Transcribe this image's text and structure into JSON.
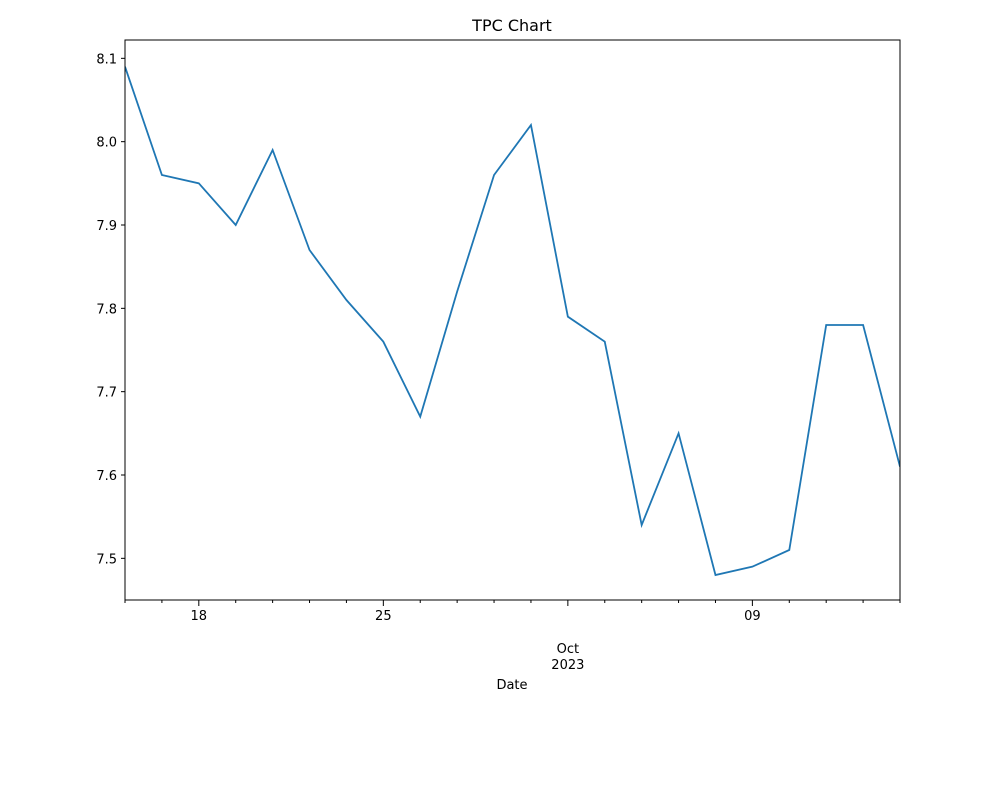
{
  "chart_data": {
    "type": "line",
    "title": "TPC Chart",
    "xlabel": "Date",
    "x": [
      "2023-09-14",
      "2023-09-15",
      "2023-09-18",
      "2023-09-19",
      "2023-09-20",
      "2023-09-21",
      "2023-09-22",
      "2023-09-25",
      "2023-09-26",
      "2023-09-27",
      "2023-09-28",
      "2023-09-29",
      "2023-10-02",
      "2023-10-03",
      "2023-10-04",
      "2023-10-05",
      "2023-10-06",
      "2023-10-09",
      "2023-10-10",
      "2023-10-11",
      "2023-10-12",
      "2023-10-13"
    ],
    "series": [
      {
        "name": "TPC",
        "color": "#1f77b4",
        "values": [
          8.09,
          7.96,
          7.95,
          7.9,
          7.99,
          7.87,
          7.81,
          7.76,
          7.67,
          7.82,
          7.96,
          8.02,
          7.79,
          7.76,
          7.54,
          7.65,
          7.48,
          7.49,
          7.51,
          7.78,
          7.78,
          7.61
        ]
      }
    ],
    "xlim": [
      "2023-09-14",
      "2023-10-13"
    ],
    "xticks": [
      {
        "value": "2023-09-18",
        "label": "18"
      },
      {
        "value": "2023-09-25",
        "label": "25"
      },
      {
        "value": "2023-10-02",
        "label": [
          "Oct",
          "2023"
        ]
      },
      {
        "value": "2023-10-09",
        "label": "09"
      }
    ],
    "ylim": [
      7.45,
      8.122
    ],
    "yticks": [
      {
        "value": 7.5,
        "label": "7.5"
      },
      {
        "value": 7.6,
        "label": "7.6"
      },
      {
        "value": 7.7,
        "label": "7.7"
      },
      {
        "value": 7.8,
        "label": "7.8"
      },
      {
        "value": 7.9,
        "label": "7.9"
      },
      {
        "value": 8.0,
        "label": "8.0"
      },
      {
        "value": 8.1,
        "label": "8.1"
      }
    ],
    "grid": false
  }
}
